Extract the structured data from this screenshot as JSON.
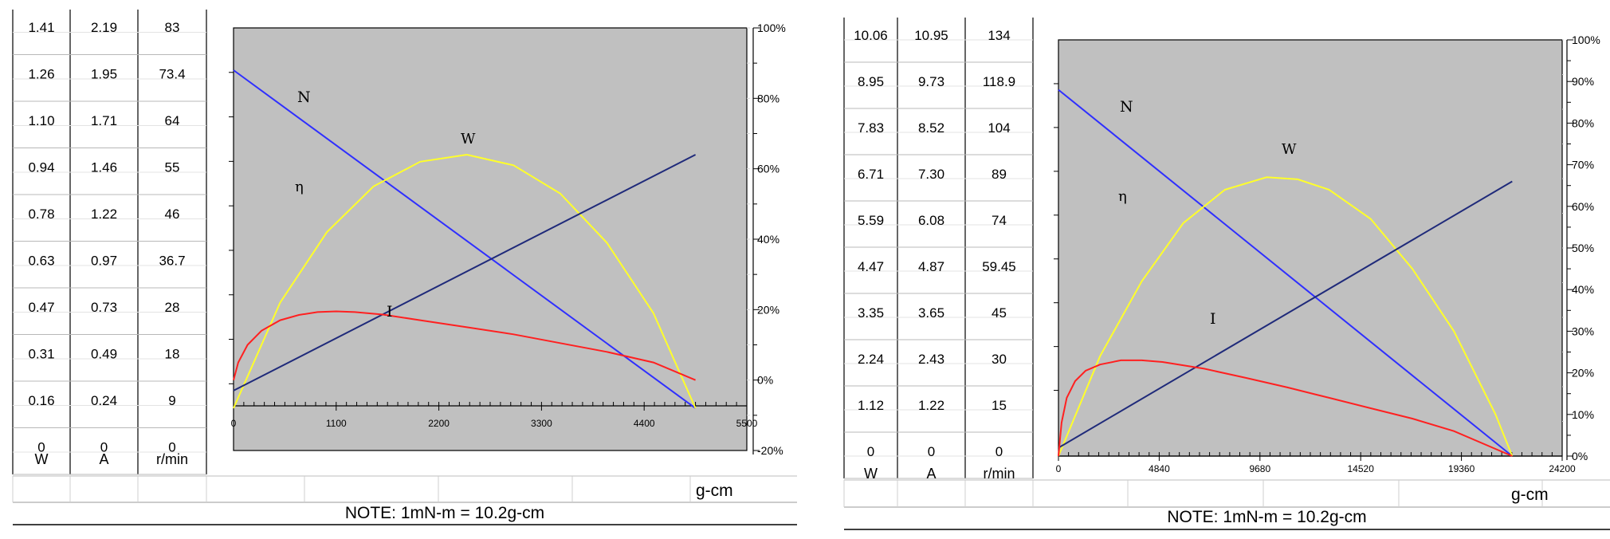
{
  "note": "NOTE: 1mN-m = 10.2g-cm",
  "unit_label": "g-cm",
  "colors": {
    "plot_bg": "#c0c0c0",
    "N": "#2f2fff",
    "W": "#ffff2a",
    "eta": "#1f2a7a",
    "I": "#ff2020",
    "grid": "#d9d9d9"
  },
  "chart_data": [
    {
      "type": "line",
      "title": "",
      "table": {
        "headers": [
          "W",
          "A",
          "r/min"
        ],
        "rows": [
          [
            "1.41",
            "2.19",
            "83"
          ],
          [
            "1.26",
            "1.95",
            "73.4"
          ],
          [
            "1.10",
            "1.71",
            "64"
          ],
          [
            "0.94",
            "1.46",
            "55"
          ],
          [
            "0.78",
            "1.22",
            "46"
          ],
          [
            "0.63",
            "0.97",
            "36.7"
          ],
          [
            "0.47",
            "0.73",
            "28"
          ],
          [
            "0.31",
            "0.49",
            "18"
          ],
          [
            "0.16",
            "0.24",
            "9"
          ],
          [
            "0",
            "0",
            "0"
          ]
        ]
      },
      "x_ticks": [
        "0",
        "1100",
        "2200",
        "3300",
        "4400",
        "5500"
      ],
      "xlim": [
        0,
        5500
      ],
      "y2_ticks": [
        "100%",
        "80%",
        "60%",
        "40%",
        "20%",
        "0%",
        "-20%"
      ],
      "y2lim": [
        -20,
        100
      ],
      "series": [
        {
          "name": "N",
          "x": [
            0,
            4950
          ],
          "y": [
            88,
            -8
          ]
        },
        {
          "name": "W",
          "x": [
            0,
            500,
            1000,
            1500,
            2000,
            2500,
            3000,
            3500,
            4000,
            4500,
            4950
          ],
          "y": [
            -8,
            22,
            42,
            55,
            62,
            64,
            61,
            53,
            39,
            19,
            -8
          ]
        },
        {
          "name": "η",
          "x": [
            0,
            4950
          ],
          "y": [
            -3,
            64
          ]
        },
        {
          "name": "I",
          "x": [
            0,
            50,
            150,
            300,
            500,
            700,
            900,
            1100,
            1300,
            1600,
            2000,
            2500,
            3000,
            3500,
            4000,
            4500,
            4950
          ],
          "y": [
            0,
            5,
            10,
            14,
            17,
            18.5,
            19.3,
            19.5,
            19.3,
            18.6,
            17,
            15,
            13,
            10.5,
            8,
            5,
            0
          ]
        }
      ],
      "labels": {
        "N": "N",
        "W": "W",
        "eta": "η",
        "I": "I"
      }
    },
    {
      "type": "line",
      "title": "",
      "table": {
        "headers": [
          "W",
          "A",
          "r/min"
        ],
        "rows": [
          [
            "10.06",
            "10.95",
            "134"
          ],
          [
            "8.95",
            "9.73",
            "118.9"
          ],
          [
            "7.83",
            "8.52",
            "104"
          ],
          [
            "6.71",
            "7.30",
            "89"
          ],
          [
            "5.59",
            "6.08",
            "74"
          ],
          [
            "4.47",
            "4.87",
            "59.45"
          ],
          [
            "3.35",
            "3.65",
            "45"
          ],
          [
            "2.24",
            "2.43",
            "30"
          ],
          [
            "1.12",
            "1.22",
            "15"
          ],
          [
            "0",
            "0",
            "0"
          ]
        ]
      },
      "x_ticks": [
        "0",
        "4840",
        "9680",
        "14520",
        "19360",
        "24200"
      ],
      "xlim": [
        0,
        24200
      ],
      "y2_ticks": [
        "100%",
        "90%",
        "80%",
        "70%",
        "60%",
        "50%",
        "40%",
        "30%",
        "20%",
        "10%",
        "0%"
      ],
      "y2lim": [
        0,
        100
      ],
      "series": [
        {
          "name": "N",
          "x": [
            0,
            21800
          ],
          "y": [
            88,
            0
          ]
        },
        {
          "name": "W",
          "x": [
            0,
            2000,
            4000,
            6000,
            8000,
            10000,
            11500,
            13000,
            15000,
            17000,
            19000,
            21000,
            21800
          ],
          "y": [
            0,
            24,
            42,
            56,
            64,
            67,
            66.5,
            64,
            57,
            45,
            30,
            10,
            0
          ]
        },
        {
          "name": "η",
          "x": [
            0,
            21800
          ],
          "y": [
            2,
            66
          ]
        },
        {
          "name": "I",
          "x": [
            0,
            150,
            400,
            800,
            1300,
            2000,
            3000,
            4000,
            5000,
            7000,
            9000,
            11000,
            13000,
            15000,
            17000,
            19000,
            21800
          ],
          "y": [
            0,
            8,
            14,
            18,
            20.5,
            22,
            23,
            23,
            22.6,
            21,
            18.8,
            16.5,
            14,
            11.5,
            9,
            6,
            0
          ]
        }
      ],
      "labels": {
        "N": "N",
        "W": "W",
        "eta": "η",
        "I": "I"
      }
    }
  ]
}
